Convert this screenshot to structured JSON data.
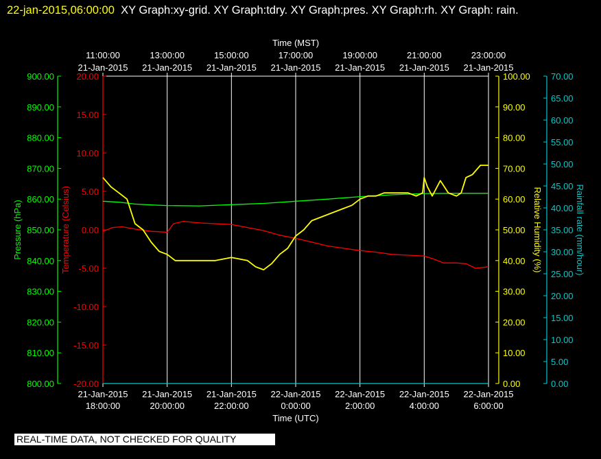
{
  "header": {
    "timestamp": "22-jan-2015,06:00:00",
    "graphs": "XY Graph:xy-grid.  XY Graph:tdry.  XY Graph:pres.  XY Graph:rh.  XY Graph: rain."
  },
  "footer": {
    "disclaimer": "REAL-TIME DATA, NOT CHECKED FOR QUALITY"
  },
  "colors": {
    "background": "#000000",
    "pressure": "#00ff00",
    "temperature": "#ff0000",
    "humidity": "#ffff00",
    "rain": "#00cccc",
    "grid": "#ffffff",
    "text": "#ffffff"
  },
  "chart_data": {
    "type": "line",
    "grid": true,
    "x_top": {
      "label": "Time (MST)",
      "ticks": [
        {
          "hour": 0,
          "time": "11:00:00",
          "date": "21-Jan-2015"
        },
        {
          "hour": 2,
          "time": "13:00:00",
          "date": "21-Jan-2015"
        },
        {
          "hour": 4,
          "time": "15:00:00",
          "date": "21-Jan-2015"
        },
        {
          "hour": 6,
          "time": "17:00:00",
          "date": "21-Jan-2015"
        },
        {
          "hour": 8,
          "time": "19:00:00",
          "date": "21-Jan-2015"
        },
        {
          "hour": 10,
          "time": "21:00:00",
          "date": "21-Jan-2015"
        },
        {
          "hour": 12,
          "time": "23:00:00",
          "date": "21-Jan-2015"
        }
      ]
    },
    "x_bottom": {
      "label": "Time (UTC)",
      "ticks": [
        {
          "hour": 0,
          "date": "21-Jan-2015",
          "time": "18:00:00"
        },
        {
          "hour": 2,
          "date": "21-Jan-2015",
          "time": "20:00:00"
        },
        {
          "hour": 4,
          "date": "21-Jan-2015",
          "time": "22:00:00"
        },
        {
          "hour": 6,
          "date": "22-Jan-2015",
          "time": "0:00:00"
        },
        {
          "hour": 8,
          "date": "22-Jan-2015",
          "time": "2:00:00"
        },
        {
          "hour": 10,
          "date": "22-Jan-2015",
          "time": "4:00:00"
        },
        {
          "hour": 12,
          "date": "22-Jan-2015",
          "time": "6:00:00"
        }
      ]
    },
    "y_axes": [
      {
        "key": "pressure",
        "label": "Pressure (hPa)",
        "ylim": [
          800,
          900
        ],
        "step": 10,
        "decimals": 2,
        "color": "#00ff00"
      },
      {
        "key": "temperature",
        "label": "Temperature (Celsius)",
        "ylim": [
          -20,
          20
        ],
        "step": 5,
        "decimals": 2,
        "color": "#ff0000"
      },
      {
        "key": "humidity",
        "label": "Relative Humidity (%)",
        "ylim": [
          0,
          100
        ],
        "step": 10,
        "decimals": 2,
        "color": "#ffff00"
      },
      {
        "key": "rain",
        "label": "Rainfall rate (mm/hour)",
        "ylim": [
          0,
          70
        ],
        "step": 5,
        "decimals": 2,
        "color": "#00cccc"
      }
    ],
    "series": [
      {
        "key": "pressure",
        "color": "#00ff00",
        "x": [
          0,
          0.5,
          1,
          1.5,
          2,
          3,
          4,
          5,
          6,
          7,
          8,
          9,
          10,
          11,
          12
        ],
        "y": [
          859.3,
          859.0,
          858.4,
          858.1,
          857.9,
          857.8,
          858.2,
          858.6,
          859.3,
          860.0,
          860.8,
          861.4,
          861.8,
          861.9,
          861.9
        ]
      },
      {
        "key": "temperature",
        "color": "#ff0000",
        "x": [
          0,
          0.3,
          0.6,
          1,
          1.5,
          2,
          2.2,
          2.5,
          3,
          3.5,
          4,
          4.5,
          5,
          5.5,
          6,
          6.5,
          7,
          7.5,
          8,
          8.5,
          9,
          9.5,
          10,
          10.3,
          10.6,
          11,
          11.3,
          11.6,
          12
        ],
        "y": [
          -0.2,
          0.3,
          0.4,
          0.1,
          -0.2,
          -0.3,
          0.8,
          1.1,
          0.9,
          0.8,
          0.7,
          0.3,
          -0.1,
          -0.7,
          -1.1,
          -1.6,
          -2.1,
          -2.4,
          -2.7,
          -2.9,
          -3.2,
          -3.3,
          -3.4,
          -3.8,
          -4.3,
          -4.3,
          -4.4,
          -5.0,
          -4.8
        ]
      },
      {
        "key": "humidity",
        "color": "#ffff00",
        "x": [
          0,
          0.25,
          0.5,
          0.75,
          1,
          1.25,
          1.5,
          1.75,
          2,
          2.25,
          2.5,
          3,
          3.5,
          4,
          4.5,
          4.75,
          5,
          5.25,
          5.5,
          5.75,
          6,
          6.25,
          6.5,
          6.75,
          7,
          7.25,
          7.5,
          7.75,
          8,
          8.25,
          8.5,
          8.75,
          9,
          9.25,
          9.5,
          9.75,
          9.95,
          10,
          10.1,
          10.25,
          10.5,
          10.75,
          11,
          11.15,
          11.3,
          11.5,
          11.75,
          12
        ],
        "y": [
          67,
          64,
          62,
          60,
          52,
          50,
          46,
          43,
          42,
          40,
          40,
          40,
          40,
          41,
          40,
          38,
          37,
          39,
          42,
          44,
          48,
          50,
          53,
          54,
          55,
          56,
          57,
          58,
          60,
          61,
          61,
          62,
          62,
          62,
          62,
          61,
          62,
          67,
          64,
          61,
          66,
          62,
          61,
          62,
          67,
          68,
          71,
          71
        ]
      },
      {
        "key": "rain",
        "color": "#00cccc",
        "x": [
          0,
          12
        ],
        "y": [
          0,
          0
        ]
      }
    ]
  }
}
